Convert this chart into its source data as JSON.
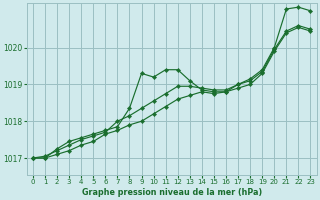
{
  "xlabel": "Graphe pression niveau de la mer (hPa)",
  "bg_color": "#d0eaec",
  "grid_color": "#9bbfc2",
  "line_color": "#1a6e2e",
  "marker_color": "#1a6e2e",
  "xlim": [
    -0.5,
    23.5
  ],
  "ylim": [
    1016.55,
    1021.2
  ],
  "yticks": [
    1017,
    1018,
    1019,
    1020
  ],
  "xticks": [
    0,
    1,
    2,
    3,
    4,
    5,
    6,
    7,
    8,
    9,
    10,
    11,
    12,
    13,
    14,
    15,
    16,
    17,
    18,
    19,
    20,
    21,
    22,
    23
  ],
  "lines": [
    {
      "x": [
        0,
        1,
        2,
        3,
        4,
        5,
        6,
        7,
        8,
        9,
        10,
        11,
        12,
        13,
        14,
        15,
        16,
        17,
        18,
        19,
        20,
        21,
        22,
        23
      ],
      "y": [
        1017.0,
        1017.0,
        1017.25,
        1017.45,
        1017.55,
        1017.65,
        1017.75,
        1017.85,
        1018.35,
        1019.3,
        1019.2,
        1019.4,
        1019.4,
        1019.1,
        1018.85,
        1018.8,
        1018.8,
        1019.0,
        1019.15,
        1019.4,
        1020.0,
        1021.05,
        1021.1,
        1021.0
      ]
    },
    {
      "x": [
        0,
        1,
        2,
        3,
        4,
        5,
        6,
        7,
        8,
        9,
        10,
        11,
        12,
        13,
        14,
        15,
        16,
        17,
        18,
        19,
        20,
        21,
        22,
        23
      ],
      "y": [
        1017.0,
        1017.05,
        1017.2,
        1017.35,
        1017.5,
        1017.6,
        1017.7,
        1018.0,
        1018.15,
        1018.35,
        1018.55,
        1018.75,
        1018.95,
        1018.95,
        1018.9,
        1018.85,
        1018.85,
        1019.0,
        1019.1,
        1019.35,
        1019.95,
        1020.45,
        1020.6,
        1020.5
      ]
    },
    {
      "x": [
        0,
        1,
        2,
        3,
        4,
        5,
        6,
        7,
        8,
        9,
        10,
        11,
        12,
        13,
        14,
        15,
        16,
        17,
        18,
        19,
        20,
        21,
        22,
        23
      ],
      "y": [
        1017.0,
        1017.0,
        1017.1,
        1017.2,
        1017.35,
        1017.45,
        1017.65,
        1017.75,
        1017.9,
        1018.0,
        1018.2,
        1018.4,
        1018.6,
        1018.7,
        1018.8,
        1018.75,
        1018.8,
        1018.9,
        1019.0,
        1019.3,
        1019.9,
        1020.4,
        1020.55,
        1020.45
      ]
    }
  ]
}
